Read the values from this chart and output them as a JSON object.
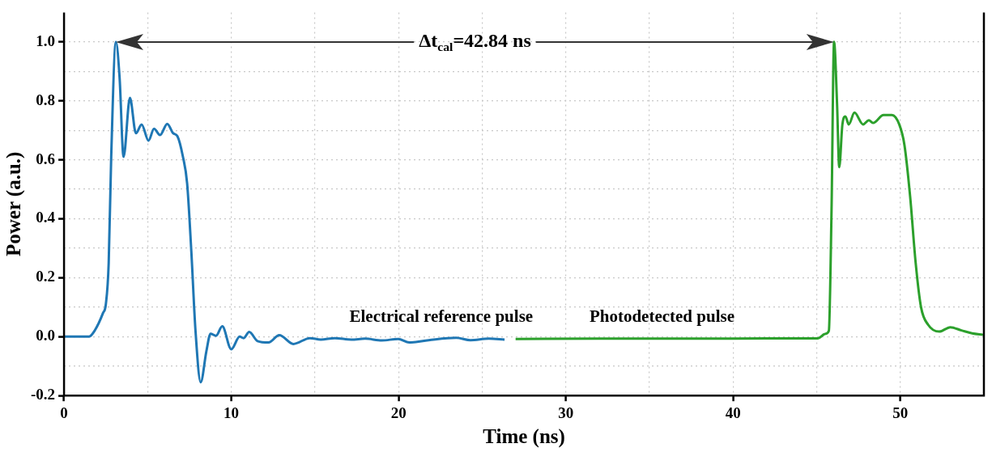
{
  "chart_data": {
    "type": "line",
    "xlabel": "Time (ns)",
    "ylabel": "Power (a.u.)",
    "xlim": [
      0,
      55
    ],
    "xticks": [
      0,
      {
        "value": 5,
        "label": null
      },
      10,
      {
        "value": 15,
        "label": null
      },
      20,
      {
        "value": 25,
        "label": null
      },
      30,
      {
        "value": 35,
        "label": null
      },
      40,
      {
        "value": 45,
        "label": null
      },
      50,
      {
        "value": 55,
        "label": null
      }
    ],
    "ylim": [
      -0.2,
      1.1
    ],
    "yticks": [
      -0.2,
      {
        "value": -0.1,
        "label": null
      },
      "0.0",
      {
        "value": 0.1,
        "label": null
      },
      0.2,
      {
        "value": 0.3,
        "label": null
      },
      0.4,
      {
        "value": 0.5,
        "label": null
      },
      0.6,
      {
        "value": 0.7,
        "label": null
      },
      0.8,
      {
        "value": 0.9,
        "label": null
      },
      "1.0"
    ],
    "grid": true,
    "legend": false,
    "marker": "none",
    "line_style": "solid",
    "annotations": [
      "Δt$_{cal}$=42.84 ns"
    ],
    "series": [
      {
        "name": "Electrical reference pulse",
        "color": "#1f77b4",
        "x": [
          0,
          1.5,
          1.83,
          2.33,
          2.5,
          2.67,
          2.82,
          3.1,
          3.32,
          3.56,
          3.94,
          4.3,
          4.64,
          5.05,
          5.38,
          5.74,
          6.17,
          6.53,
          6.78,
          7.11,
          7.36,
          7.61,
          7.86,
          8.17,
          8.51,
          8.76,
          9.09,
          9.46,
          10.0,
          10.5,
          10.74,
          11.07,
          11.57,
          12.23,
          12.87,
          13.71,
          14.7,
          15.35,
          16.19,
          17.18,
          18.0,
          19.0,
          19.98,
          20.64,
          21.8,
          23.45,
          24.3,
          25.4,
          26.34
        ],
        "values": [
          0,
          0,
          0.02,
          0.08,
          0.11,
          0.25,
          0.61,
          1.0,
          0.88,
          0.61,
          0.81,
          0.69,
          0.72,
          0.665,
          0.705,
          0.684,
          0.722,
          0.69,
          0.68,
          0.61,
          0.52,
          0.29,
          0.02,
          -0.155,
          -0.05,
          0.01,
          0.003,
          0.035,
          -0.043,
          0,
          -0.005,
          0.016,
          -0.015,
          -0.02,
          0.005,
          -0.025,
          -0.005,
          -0.01,
          -0.005,
          -0.01,
          -0.007,
          -0.013,
          -0.008,
          -0.02,
          -0.012,
          -0.004,
          -0.012,
          -0.007,
          -0.01
        ]
      },
      {
        "name": "Photodetected pulse",
        "color": "#2ca02c",
        "x": [
          27.0,
          32.0,
          38.0,
          42.0,
          45.05,
          45.54,
          45.73,
          45.89,
          46.04,
          46.22,
          46.35,
          46.54,
          46.72,
          46.92,
          47.26,
          47.78,
          48.12,
          48.37,
          49.0,
          49.5,
          49.94,
          50.25,
          50.59,
          50.92,
          51.24,
          51.67,
          52.33,
          52.99,
          53.66,
          54.3,
          54.95
        ],
        "values": [
          -0.008,
          -0.007,
          -0.007,
          -0.006,
          -0.006,
          0.01,
          0.02,
          0.43,
          1.0,
          0.79,
          0.575,
          0.72,
          0.747,
          0.72,
          0.76,
          0.72,
          0.734,
          0.725,
          0.752,
          0.752,
          0.72,
          0.65,
          0.475,
          0.25,
          0.1,
          0.04,
          0.017,
          0.032,
          0.021,
          0.011,
          0.006
        ]
      }
    ]
  }
}
